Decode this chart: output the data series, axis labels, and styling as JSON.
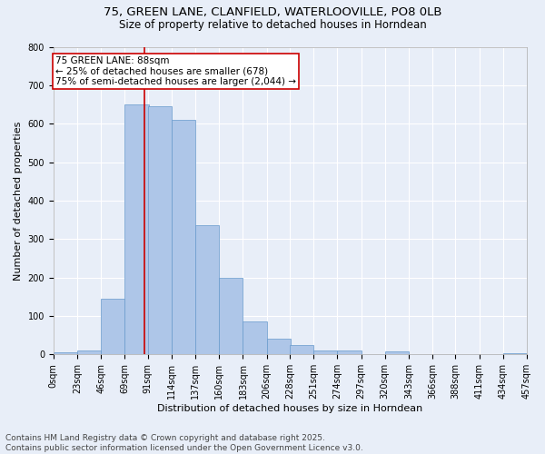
{
  "title_line1": "75, GREEN LANE, CLANFIELD, WATERLOOVILLE, PO8 0LB",
  "title_line2": "Size of property relative to detached houses in Horndean",
  "xlabel": "Distribution of detached houses by size in Horndean",
  "ylabel": "Number of detached properties",
  "bar_color": "#aec6e8",
  "bar_edge_color": "#6699cc",
  "background_color": "#e8eef8",
  "grid_color": "#ffffff",
  "bin_edges": [
    0,
    23,
    46,
    69,
    91,
    114,
    137,
    160,
    183,
    206,
    228,
    251,
    274,
    297,
    320,
    343,
    366,
    388,
    411,
    434,
    457
  ],
  "bin_labels": [
    "0sqm",
    "23sqm",
    "46sqm",
    "69sqm",
    "91sqm",
    "114sqm",
    "137sqm",
    "160sqm",
    "183sqm",
    "206sqm",
    "228sqm",
    "251sqm",
    "274sqm",
    "297sqm",
    "320sqm",
    "343sqm",
    "366sqm",
    "388sqm",
    "411sqm",
    "434sqm",
    "457sqm"
  ],
  "bar_heights": [
    5,
    10,
    145,
    650,
    645,
    610,
    335,
    200,
    85,
    40,
    25,
    10,
    10,
    0,
    7,
    0,
    0,
    0,
    0,
    3
  ],
  "vline_x": 88,
  "vline_color": "#cc0000",
  "annotation_text": "75 GREEN LANE: 88sqm\n← 25% of detached houses are smaller (678)\n75% of semi-detached houses are larger (2,044) →",
  "annotation_box_color": "#ffffff",
  "annotation_box_edge": "#cc0000",
  "ylim": [
    0,
    800
  ],
  "yticks": [
    0,
    100,
    200,
    300,
    400,
    500,
    600,
    700,
    800
  ],
  "footnote": "Contains HM Land Registry data © Crown copyright and database right 2025.\nContains public sector information licensed under the Open Government Licence v3.0.",
  "title_fontsize": 9.5,
  "subtitle_fontsize": 8.5,
  "axis_label_fontsize": 8,
  "tick_fontsize": 7,
  "annotation_fontsize": 7.5,
  "footnote_fontsize": 6.5
}
